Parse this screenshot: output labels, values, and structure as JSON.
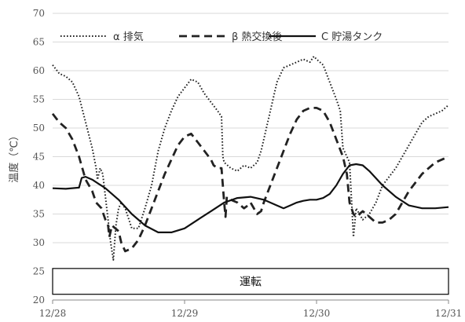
{
  "chart_data": {
    "type": "line",
    "xlabel": "",
    "ylabel": "温度（℃）",
    "ylim": [
      20,
      70
    ],
    "yticks": [
      20,
      25,
      30,
      35,
      40,
      45,
      50,
      55,
      60,
      65,
      70
    ],
    "xlim": [
      0,
      3
    ],
    "xticks": [
      {
        "value": 0,
        "label": "12/28"
      },
      {
        "value": 1,
        "label": "12/29"
      },
      {
        "value": 2,
        "label": "12/30"
      },
      {
        "value": 3,
        "label": "12/31"
      }
    ],
    "grid": "horizontal",
    "legend_position": "top",
    "band": {
      "label": "運転",
      "y_from": 21,
      "y_to": 25.5
    },
    "series": [
      {
        "name": "α 排気",
        "style": "dotted",
        "color": "#222222",
        "points": [
          [
            0,
            61
          ],
          [
            0.05,
            59.5
          ],
          [
            0.1,
            59
          ],
          [
            0.15,
            58
          ],
          [
            0.2,
            55.5
          ],
          [
            0.25,
            51
          ],
          [
            0.3,
            46.5
          ],
          [
            0.33,
            43
          ],
          [
            0.34,
            41
          ],
          [
            0.36,
            43
          ],
          [
            0.38,
            42
          ],
          [
            0.4,
            38
          ],
          [
            0.42,
            34
          ],
          [
            0.44,
            30
          ],
          [
            0.46,
            27
          ],
          [
            0.48,
            33
          ],
          [
            0.5,
            36
          ],
          [
            0.52,
            37
          ],
          [
            0.55,
            36
          ],
          [
            0.6,
            32.5
          ],
          [
            0.65,
            32.5
          ],
          [
            0.7,
            36
          ],
          [
            0.75,
            40
          ],
          [
            0.8,
            46
          ],
          [
            0.85,
            50
          ],
          [
            0.9,
            53
          ],
          [
            0.95,
            55.5
          ],
          [
            1,
            57
          ],
          [
            1.05,
            58.5
          ],
          [
            1.1,
            58
          ],
          [
            1.15,
            56
          ],
          [
            1.2,
            54.5
          ],
          [
            1.25,
            53
          ],
          [
            1.28,
            52
          ],
          [
            1.29,
            45
          ],
          [
            1.3,
            44
          ],
          [
            1.35,
            43
          ],
          [
            1.4,
            42.5
          ],
          [
            1.45,
            43.5
          ],
          [
            1.5,
            43
          ],
          [
            1.55,
            44
          ],
          [
            1.58,
            46
          ],
          [
            1.6,
            48
          ],
          [
            1.65,
            53
          ],
          [
            1.7,
            58
          ],
          [
            1.75,
            60.5
          ],
          [
            1.8,
            61
          ],
          [
            1.85,
            61.5
          ],
          [
            1.9,
            62
          ],
          [
            1.95,
            61.5
          ],
          [
            1.98,
            62.5
          ],
          [
            2,
            62
          ],
          [
            2.05,
            61
          ],
          [
            2.1,
            58
          ],
          [
            2.15,
            55
          ],
          [
            2.18,
            53
          ],
          [
            2.2,
            46.5
          ],
          [
            2.25,
            44
          ],
          [
            2.28,
            31
          ],
          [
            2.3,
            36
          ],
          [
            2.35,
            34
          ],
          [
            2.4,
            35
          ],
          [
            2.45,
            37
          ],
          [
            2.5,
            40
          ],
          [
            2.55,
            41.5
          ],
          [
            2.6,
            43
          ],
          [
            2.65,
            45
          ],
          [
            2.7,
            47
          ],
          [
            2.75,
            49
          ],
          [
            2.8,
            51
          ],
          [
            2.85,
            52
          ],
          [
            2.9,
            52.5
          ],
          [
            2.95,
            53
          ],
          [
            3,
            54
          ]
        ]
      },
      {
        "name": "β 熱交換後",
        "style": "dashed",
        "color": "#222222",
        "points": [
          [
            0,
            52.5
          ],
          [
            0.05,
            51
          ],
          [
            0.1,
            50
          ],
          [
            0.15,
            48
          ],
          [
            0.2,
            45
          ],
          [
            0.25,
            41
          ],
          [
            0.3,
            39
          ],
          [
            0.33,
            37
          ],
          [
            0.35,
            36.5
          ],
          [
            0.37,
            36
          ],
          [
            0.4,
            34
          ],
          [
            0.42,
            33
          ],
          [
            0.43,
            31
          ],
          [
            0.45,
            33
          ],
          [
            0.5,
            32
          ],
          [
            0.52,
            30
          ],
          [
            0.55,
            28.5
          ],
          [
            0.6,
            29
          ],
          [
            0.65,
            30.5
          ],
          [
            0.7,
            33
          ],
          [
            0.75,
            36
          ],
          [
            0.8,
            39
          ],
          [
            0.85,
            42
          ],
          [
            0.9,
            44.5
          ],
          [
            0.95,
            47
          ],
          [
            1,
            48.5
          ],
          [
            1.05,
            49
          ],
          [
            1.1,
            47.5
          ],
          [
            1.15,
            46
          ],
          [
            1.2,
            44.5
          ],
          [
            1.22,
            43.5
          ],
          [
            1.25,
            43
          ],
          [
            1.28,
            43
          ],
          [
            1.3,
            37
          ],
          [
            1.31,
            34.5
          ],
          [
            1.32,
            38
          ],
          [
            1.35,
            37.5
          ],
          [
            1.4,
            37
          ],
          [
            1.45,
            36
          ],
          [
            1.48,
            36.5
          ],
          [
            1.5,
            37
          ],
          [
            1.55,
            35
          ],
          [
            1.58,
            35.5
          ],
          [
            1.6,
            37
          ],
          [
            1.65,
            40
          ],
          [
            1.7,
            43
          ],
          [
            1.75,
            46
          ],
          [
            1.8,
            49
          ],
          [
            1.85,
            51.5
          ],
          [
            1.9,
            53
          ],
          [
            1.95,
            53.5
          ],
          [
            2,
            53.5
          ],
          [
            2.05,
            53
          ],
          [
            2.1,
            51
          ],
          [
            2.15,
            48
          ],
          [
            2.2,
            45
          ],
          [
            2.23,
            42
          ],
          [
            2.25,
            37
          ],
          [
            2.28,
            35
          ],
          [
            2.3,
            34.5
          ],
          [
            2.35,
            35.5
          ],
          [
            2.4,
            34.5
          ],
          [
            2.45,
            33.5
          ],
          [
            2.5,
            33.5
          ],
          [
            2.55,
            34
          ],
          [
            2.6,
            35
          ],
          [
            2.65,
            37
          ],
          [
            2.7,
            39
          ],
          [
            2.75,
            40.5
          ],
          [
            2.8,
            42
          ],
          [
            2.85,
            43
          ],
          [
            2.9,
            44
          ],
          [
            2.95,
            44.5
          ],
          [
            3,
            45
          ]
        ]
      },
      {
        "name": "C 貯湯タンク",
        "style": "solid",
        "color": "#111111",
        "points": [
          [
            0,
            39.5
          ],
          [
            0.1,
            39.4
          ],
          [
            0.2,
            39.6
          ],
          [
            0.22,
            41.3
          ],
          [
            0.25,
            41.5
          ],
          [
            0.3,
            41
          ],
          [
            0.4,
            39.5
          ],
          [
            0.5,
            37.5
          ],
          [
            0.6,
            35
          ],
          [
            0.7,
            33
          ],
          [
            0.8,
            31.8
          ],
          [
            0.9,
            31.8
          ],
          [
            1,
            32.5
          ],
          [
            1.1,
            34
          ],
          [
            1.2,
            35.5
          ],
          [
            1.3,
            37
          ],
          [
            1.4,
            37.8
          ],
          [
            1.5,
            38
          ],
          [
            1.6,
            37.5
          ],
          [
            1.7,
            36.5
          ],
          [
            1.75,
            36
          ],
          [
            1.8,
            36.5
          ],
          [
            1.85,
            37
          ],
          [
            1.9,
            37.3
          ],
          [
            1.95,
            37.5
          ],
          [
            2,
            37.5
          ],
          [
            2.05,
            37.8
          ],
          [
            2.1,
            38.5
          ],
          [
            2.15,
            40
          ],
          [
            2.2,
            42
          ],
          [
            2.25,
            43.5
          ],
          [
            2.3,
            43.7
          ],
          [
            2.35,
            43.5
          ],
          [
            2.4,
            42.5
          ],
          [
            2.5,
            40
          ],
          [
            2.6,
            38
          ],
          [
            2.7,
            36.5
          ],
          [
            2.8,
            36
          ],
          [
            2.9,
            36
          ],
          [
            3,
            36.2
          ]
        ]
      }
    ]
  }
}
